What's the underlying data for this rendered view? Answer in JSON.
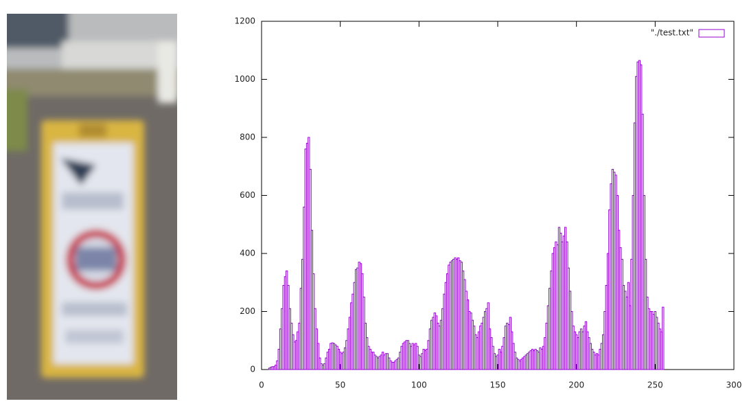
{
  "chart_data": {
    "type": "bar",
    "x": [
      0,
      1,
      2,
      3,
      4,
      5,
      6,
      7,
      8,
      9,
      10,
      11,
      12,
      13,
      14,
      15,
      16,
      17,
      18,
      19,
      20,
      21,
      22,
      23,
      24,
      25,
      26,
      27,
      28,
      29,
      30,
      31,
      32,
      33,
      34,
      35,
      36,
      37,
      38,
      39,
      40,
      41,
      42,
      43,
      44,
      45,
      46,
      47,
      48,
      49,
      50,
      51,
      52,
      53,
      54,
      55,
      56,
      57,
      58,
      59,
      60,
      61,
      62,
      63,
      64,
      65,
      66,
      67,
      68,
      69,
      70,
      71,
      72,
      73,
      74,
      75,
      76,
      77,
      78,
      79,
      80,
      81,
      82,
      83,
      84,
      85,
      86,
      87,
      88,
      89,
      90,
      91,
      92,
      93,
      94,
      95,
      96,
      97,
      98,
      99,
      100,
      101,
      102,
      103,
      104,
      105,
      106,
      107,
      108,
      109,
      110,
      111,
      112,
      113,
      114,
      115,
      116,
      117,
      118,
      119,
      120,
      121,
      122,
      123,
      124,
      125,
      126,
      127,
      128,
      129,
      130,
      131,
      132,
      133,
      134,
      135,
      136,
      137,
      138,
      139,
      140,
      141,
      142,
      143,
      144,
      145,
      146,
      147,
      148,
      149,
      150,
      151,
      152,
      153,
      154,
      155,
      156,
      157,
      158,
      159,
      160,
      161,
      162,
      163,
      164,
      165,
      166,
      167,
      168,
      169,
      170,
      171,
      172,
      173,
      174,
      175,
      176,
      177,
      178,
      179,
      180,
      181,
      182,
      183,
      184,
      185,
      186,
      187,
      188,
      189,
      190,
      191,
      192,
      193,
      194,
      195,
      196,
      197,
      198,
      199,
      200,
      201,
      202,
      203,
      204,
      205,
      206,
      207,
      208,
      209,
      210,
      211,
      212,
      213,
      214,
      215,
      216,
      217,
      218,
      219,
      220,
      221,
      222,
      223,
      224,
      225,
      226,
      227,
      228,
      229,
      230,
      231,
      232,
      233,
      234,
      235,
      236,
      237,
      238,
      239,
      240,
      241,
      242,
      243,
      244,
      245,
      246,
      247,
      248,
      249,
      250,
      251,
      252,
      253,
      254,
      255
    ],
    "series": [
      {
        "name": "\"./test.txt\"",
        "color": "#9400d3",
        "values": [
          0,
          0,
          0,
          0,
          0,
          5,
          8,
          10,
          10,
          15,
          30,
          70,
          140,
          210,
          290,
          320,
          340,
          290,
          210,
          160,
          120,
          95,
          100,
          130,
          160,
          280,
          380,
          560,
          760,
          780,
          800,
          690,
          480,
          330,
          210,
          140,
          90,
          40,
          20,
          15,
          20,
          40,
          60,
          70,
          90,
          92,
          90,
          85,
          80,
          70,
          60,
          55,
          60,
          75,
          100,
          140,
          180,
          230,
          260,
          300,
          345,
          350,
          370,
          365,
          330,
          250,
          160,
          110,
          80,
          70,
          60,
          60,
          50,
          45,
          40,
          45,
          50,
          60,
          50,
          55,
          55,
          40,
          30,
          25,
          25,
          30,
          35,
          40,
          60,
          80,
          90,
          95,
          100,
          100,
          90,
          80,
          90,
          85,
          90,
          80,
          50,
          45,
          55,
          70,
          65,
          70,
          100,
          140,
          170,
          180,
          195,
          185,
          160,
          150,
          170,
          210,
          260,
          300,
          330,
          360,
          370,
          375,
          380,
          385,
          380,
          385,
          375,
          370,
          340,
          310,
          270,
          240,
          200,
          195,
          170,
          150,
          120,
          110,
          130,
          150,
          160,
          180,
          200,
          210,
          230,
          140,
          110,
          80,
          55,
          45,
          50,
          70,
          60,
          80,
          110,
          150,
          160,
          155,
          180,
          130,
          90,
          60,
          40,
          35,
          30,
          35,
          40,
          45,
          50,
          55,
          60,
          65,
          70,
          65,
          70,
          65,
          60,
          75,
          70,
          80,
          110,
          160,
          220,
          280,
          340,
          400,
          420,
          440,
          430,
          490,
          470,
          440,
          460,
          490,
          440,
          350,
          270,
          200,
          150,
          130,
          120,
          110,
          130,
          140,
          130,
          150,
          165,
          130,
          110,
          90,
          70,
          60,
          50,
          55,
          50,
          70,
          90,
          120,
          200,
          290,
          400,
          550,
          640,
          690,
          680,
          670,
          600,
          480,
          420,
          380,
          290,
          270,
          250,
          300,
          220,
          380,
          600,
          850,
          1010,
          1060,
          1065,
          1050,
          880,
          600,
          380,
          250,
          210,
          200,
          200,
          190,
          200,
          180,
          160,
          140,
          130,
          215
        ]
      }
    ],
    "xlim": [
      0,
      300
    ],
    "xticks": [
      0,
      50,
      100,
      150,
      200,
      250,
      300
    ],
    "ylim": [
      0,
      1200
    ],
    "yticks": [
      0,
      200,
      400,
      600,
      800,
      1000,
      1200
    ],
    "grid": false,
    "legend": "top-right"
  }
}
